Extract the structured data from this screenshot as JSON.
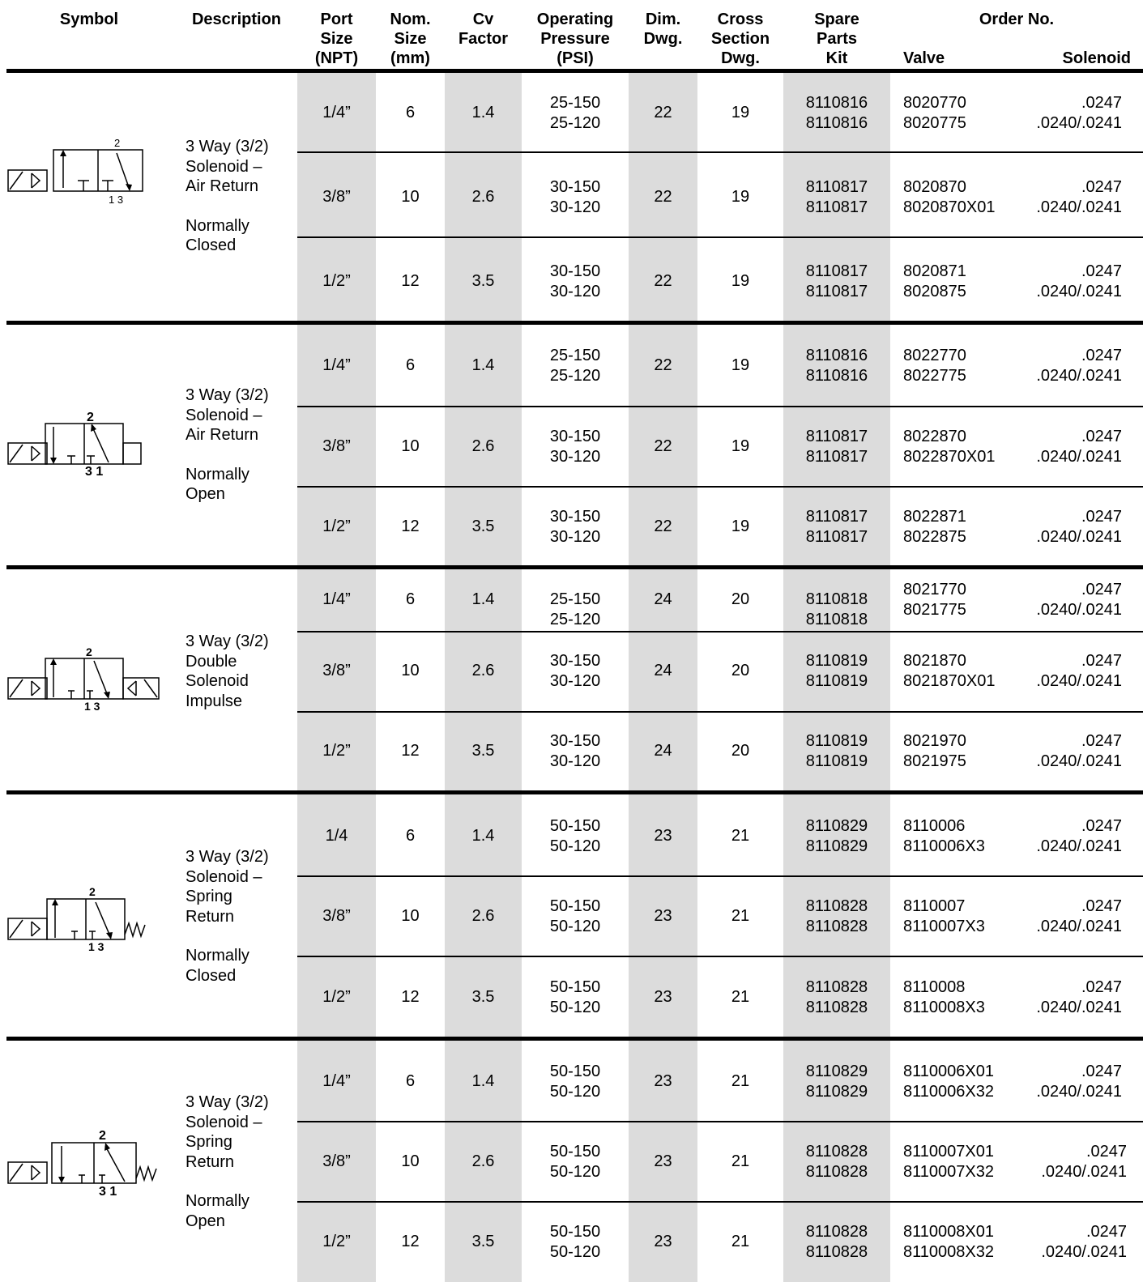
{
  "header": {
    "symbol": "Symbol",
    "description": "Description",
    "port_size": [
      "Port",
      "Size",
      "(NPT)"
    ],
    "nom_size": [
      "Nom.",
      "Size",
      "(mm)"
    ],
    "cv_factor": [
      "Cv",
      "Factor"
    ],
    "operating_pressure": [
      "Operating",
      "Pressure",
      "(PSI)"
    ],
    "dim_dwg": [
      "Dim.",
      "Dwg."
    ],
    "cross_section": [
      "Cross",
      "Section",
      "Dwg."
    ],
    "spare_parts": [
      "Spare",
      "Parts",
      "Kit"
    ],
    "order_no": "Order No.",
    "valve": "Valve",
    "solenoid": "Solenoid"
  },
  "groups": [
    {
      "description": [
        "3 Way (3/2)",
        "Solenoid –",
        "Air Return",
        "",
        "Normally",
        "Closed"
      ],
      "symbol_ports": [
        "2",
        "1 3"
      ],
      "rows": [
        {
          "port": "1/4”",
          "nom": "6",
          "cv": "1.4",
          "pressure": [
            "25-150",
            "25-120"
          ],
          "dim": "22",
          "cross": "19",
          "kit": [
            "8110816",
            "8110816"
          ],
          "valve": [
            "8020770",
            "8020775"
          ],
          "solenoid": [
            ".0247",
            ".0240/.0241"
          ]
        },
        {
          "port": "3/8”",
          "nom": "10",
          "cv": "2.6",
          "pressure": [
            "30-150",
            "30-120"
          ],
          "dim": "22",
          "cross": "19",
          "kit": [
            "8110817",
            "8110817"
          ],
          "valve": [
            "8020870",
            "8020870X01"
          ],
          "solenoid": [
            ".0247",
            ".0240/.0241"
          ]
        },
        {
          "port": "1/2”",
          "nom": "12",
          "cv": "3.5",
          "pressure": [
            "30-150",
            "30-120"
          ],
          "dim": "22",
          "cross": "19",
          "kit": [
            "8110817",
            "8110817"
          ],
          "valve": [
            "8020871",
            "8020875"
          ],
          "solenoid": [
            ".0247",
            ".0240/.0241"
          ]
        }
      ]
    },
    {
      "description": [
        "3 Way (3/2)",
        "Solenoid –",
        "Air Return",
        "",
        "Normally",
        "Open"
      ],
      "symbol_ports": [
        "2",
        "3 1"
      ],
      "rows": [
        {
          "port": "1/4”",
          "nom": "6",
          "cv": "1.4",
          "pressure": [
            "25-150",
            "25-120"
          ],
          "dim": "22",
          "cross": "19",
          "kit": [
            "8110816",
            "8110816"
          ],
          "valve": [
            "8022770",
            "8022775"
          ],
          "solenoid": [
            ".0247",
            ".0240/.0241"
          ]
        },
        {
          "port": "3/8”",
          "nom": "10",
          "cv": "2.6",
          "pressure": [
            "30-150",
            "30-120"
          ],
          "dim": "22",
          "cross": "19",
          "kit": [
            "8110817",
            "8110817"
          ],
          "valve": [
            "8022870",
            "8022870X01"
          ],
          "solenoid": [
            ".0247",
            ".0240/.0241"
          ]
        },
        {
          "port": "1/2”",
          "nom": "12",
          "cv": "3.5",
          "pressure": [
            "30-150",
            "30-120"
          ],
          "dim": "22",
          "cross": "19",
          "kit": [
            "8110817",
            "8110817"
          ],
          "valve": [
            "8022871",
            "8022875"
          ],
          "solenoid": [
            ".0247",
            ".0240/.0241"
          ]
        }
      ]
    },
    {
      "description": [
        "3 Way (3/2)",
        "Double",
        "Solenoid",
        "Impulse"
      ],
      "symbol_ports": [
        "2",
        "1 3"
      ],
      "rows": [
        {
          "port": "1/4”",
          "nom": "6",
          "cv": "1.4",
          "pressure": [
            "25-150",
            "25-120"
          ],
          "dim": "24",
          "cross": "20",
          "kit": [
            "8110818",
            "8110818"
          ],
          "valve": [
            "8021770",
            "8021775"
          ],
          "solenoid": [
            ".0247",
            ".0240/.0241"
          ]
        },
        {
          "port": "3/8”",
          "nom": "10",
          "cv": "2.6",
          "pressure": [
            "30-150",
            "30-120"
          ],
          "dim": "24",
          "cross": "20",
          "kit": [
            "8110819",
            "8110819"
          ],
          "valve": [
            "8021870",
            "8021870X01"
          ],
          "solenoid": [
            ".0247",
            ".0240/.0241"
          ]
        },
        {
          "port": "1/2”",
          "nom": "12",
          "cv": "3.5",
          "pressure": [
            "30-150",
            "30-120"
          ],
          "dim": "24",
          "cross": "20",
          "kit": [
            "8110819",
            "8110819"
          ],
          "valve": [
            "8021970",
            "8021975"
          ],
          "solenoid": [
            ".0247",
            ".0240/.0241"
          ]
        }
      ]
    },
    {
      "description": [
        "3 Way (3/2)",
        "Solenoid –",
        "Spring",
        "Return",
        "",
        "Normally",
        "Closed"
      ],
      "symbol_ports": [
        "2",
        "1 3"
      ],
      "rows": [
        {
          "port": "1/4",
          "nom": "6",
          "cv": "1.4",
          "pressure": [
            "50-150",
            "50-120"
          ],
          "dim": "23",
          "cross": "21",
          "kit": [
            "8110829",
            "8110829"
          ],
          "valve": [
            "8110006",
            "8110006X3"
          ],
          "solenoid": [
            ".0247",
            ".0240/.0241"
          ]
        },
        {
          "port": "3/8”",
          "nom": "10",
          "cv": "2.6",
          "pressure": [
            "50-150",
            "50-120"
          ],
          "dim": "23",
          "cross": "21",
          "kit": [
            "8110828",
            "8110828"
          ],
          "valve": [
            "8110007",
            "8110007X3"
          ],
          "solenoid": [
            ".0247",
            ".0240/.0241"
          ]
        },
        {
          "port": "1/2”",
          "nom": "12",
          "cv": "3.5",
          "pressure": [
            "50-150",
            "50-120"
          ],
          "dim": "23",
          "cross": "21",
          "kit": [
            "8110828",
            "8110828"
          ],
          "valve": [
            "8110008",
            "8110008X3"
          ],
          "solenoid": [
            ".0247",
            ".0240/.0241"
          ]
        }
      ]
    },
    {
      "description": [
        "3 Way (3/2)",
        "Solenoid –",
        "Spring",
        "Return",
        "",
        "Normally",
        "Open"
      ],
      "symbol_ports": [
        "2",
        "3 1"
      ],
      "rows": [
        {
          "port": "1/4”",
          "nom": "6",
          "cv": "1.4",
          "pressure": [
            "50-150",
            "50-120"
          ],
          "dim": "23",
          "cross": "21",
          "kit": [
            "8110829",
            "8110829"
          ],
          "valve": [
            "8110006X01",
            "8110006X32"
          ],
          "solenoid": [
            ".0247",
            ".0240/.0241"
          ]
        },
        {
          "port": "3/8”",
          "nom": "10",
          "cv": "2.6",
          "pressure": [
            "50-150",
            "50-120"
          ],
          "dim": "23",
          "cross": "21",
          "kit": [
            "8110828",
            "8110828"
          ],
          "valve": [
            "8110007X01",
            "8110007X32"
          ],
          "solenoid": [
            ".0247",
            ".0240/.0241"
          ]
        },
        {
          "port": "1/2”",
          "nom": "12",
          "cv": "3.5",
          "pressure": [
            "50-150",
            "50-120"
          ],
          "dim": "23",
          "cross": "21",
          "kit": [
            "8110828",
            "8110828"
          ],
          "valve": [
            "8110008X01",
            "8110008X32"
          ],
          "solenoid": [
            ".0247",
            ".0240/.0241"
          ]
        }
      ]
    }
  ]
}
